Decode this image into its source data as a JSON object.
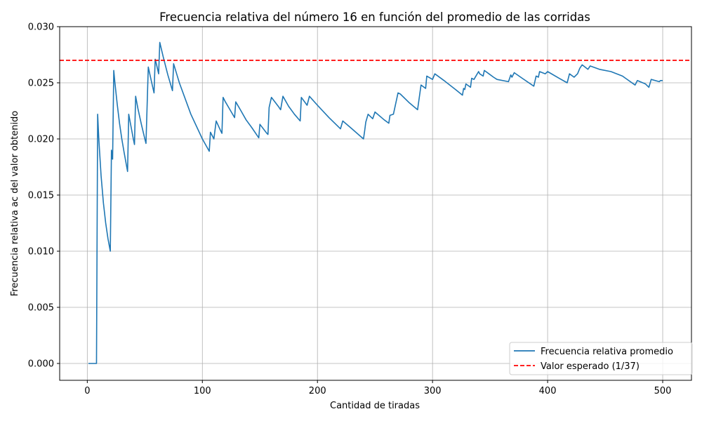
{
  "chart_data": {
    "type": "line",
    "title": "Frecuencia relativa del número 16 en función del promedio de las corridas",
    "xlabel": "Cantidad de tiradas",
    "ylabel": "Frecuencia relativa ac del valor obtenido",
    "xlim": [
      -24,
      525
    ],
    "ylim": [
      -0.0015,
      0.03
    ],
    "xticks": [
      0,
      100,
      200,
      300,
      400,
      500
    ],
    "yticks": [
      0.0,
      0.005,
      0.01,
      0.015,
      0.02,
      0.025,
      0.03
    ],
    "xtick_labels": [
      "0",
      "100",
      "200",
      "300",
      "400",
      "500"
    ],
    "ytick_labels": [
      "0.000",
      "0.005",
      "0.010",
      "0.015",
      "0.020",
      "0.025",
      "0.030"
    ],
    "grid": true,
    "legend_position": "lower-right",
    "series": [
      {
        "name": "Frecuencia relativa promedio",
        "color": "#1f77b4",
        "style": "solid",
        "x": [
          1,
          8,
          9,
          10,
          12,
          14,
          16,
          18,
          20,
          21,
          21.5,
          22,
          23,
          24,
          26,
          28,
          30,
          32,
          35,
          36,
          38,
          40,
          41,
          42,
          44,
          47,
          50,
          51,
          53,
          56,
          58,
          59,
          60,
          62,
          63,
          66,
          70,
          74,
          75,
          80,
          90,
          100,
          106,
          107,
          109,
          110,
          112,
          116,
          117,
          118,
          120,
          124,
          128,
          129,
          133,
          138,
          143,
          149,
          150,
          156,
          157,
          158,
          160,
          166,
          168,
          170,
          175,
          180,
          185,
          186,
          191,
          193,
          200,
          210,
          220,
          222,
          230,
          240,
          241,
          242,
          244,
          248,
          250,
          258,
          262,
          263,
          266,
          270,
          272,
          280,
          287,
          290,
          294,
          295,
          300,
          302,
          310,
          320,
          326,
          327,
          328,
          329,
          333,
          334,
          336,
          340,
          341,
          344,
          345,
          349,
          353,
          356,
          366,
          368,
          369,
          371,
          378,
          388,
          390,
          392,
          393,
          398,
          400,
          410,
          417,
          419,
          423,
          426,
          428,
          430,
          435,
          437,
          445,
          455,
          465,
          476,
          478,
          485,
          488,
          490,
          497,
          498,
          500
        ],
        "y": [
          0.0,
          0.0,
          0.0222,
          0.02,
          0.0167,
          0.0143,
          0.0125,
          0.0111,
          0.01,
          0.019,
          0.0183,
          0.0182,
          0.0261,
          0.025,
          0.0231,
          0.0214,
          0.02,
          0.0188,
          0.0171,
          0.0222,
          0.0211,
          0.02,
          0.0195,
          0.0238,
          0.0227,
          0.0213,
          0.02,
          0.0196,
          0.0264,
          0.025,
          0.0241,
          0.0271,
          0.0267,
          0.0258,
          0.0286,
          0.0273,
          0.0257,
          0.0243,
          0.0267,
          0.025,
          0.0222,
          0.02,
          0.0189,
          0.0206,
          0.0202,
          0.02,
          0.0216,
          0.0207,
          0.0205,
          0.0237,
          0.0233,
          0.0226,
          0.0219,
          0.0233,
          0.0226,
          0.0217,
          0.021,
          0.0201,
          0.0213,
          0.0205,
          0.0204,
          0.0228,
          0.0237,
          0.0229,
          0.0226,
          0.0238,
          0.0229,
          0.0222,
          0.0216,
          0.0237,
          0.023,
          0.0238,
          0.023,
          0.0219,
          0.0209,
          0.0216,
          0.0209,
          0.02,
          0.0207,
          0.0215,
          0.0222,
          0.0218,
          0.0224,
          0.0217,
          0.0214,
          0.0221,
          0.0222,
          0.0241,
          0.024,
          0.0232,
          0.0226,
          0.0248,
          0.0245,
          0.0256,
          0.0253,
          0.0258,
          0.0252,
          0.0244,
          0.0239,
          0.0245,
          0.0244,
          0.0249,
          0.0246,
          0.0254,
          0.0253,
          0.026,
          0.0258,
          0.0256,
          0.0261,
          0.0258,
          0.0255,
          0.0253,
          0.0251,
          0.0257,
          0.0255,
          0.0259,
          0.0254,
          0.0247,
          0.0256,
          0.0255,
          0.026,
          0.0258,
          0.026,
          0.0254,
          0.025,
          0.0258,
          0.0255,
          0.0258,
          0.0263,
          0.0266,
          0.0262,
          0.0265,
          0.0262,
          0.026,
          0.0256,
          0.0248,
          0.0252,
          0.0249,
          0.0246,
          0.0253,
          0.0251,
          0.0252,
          0.0252
        ]
      },
      {
        "name": "Valor esperado (1/37)",
        "color": "#ff0000",
        "style": "dashed",
        "y_constant": 0.027
      }
    ]
  }
}
